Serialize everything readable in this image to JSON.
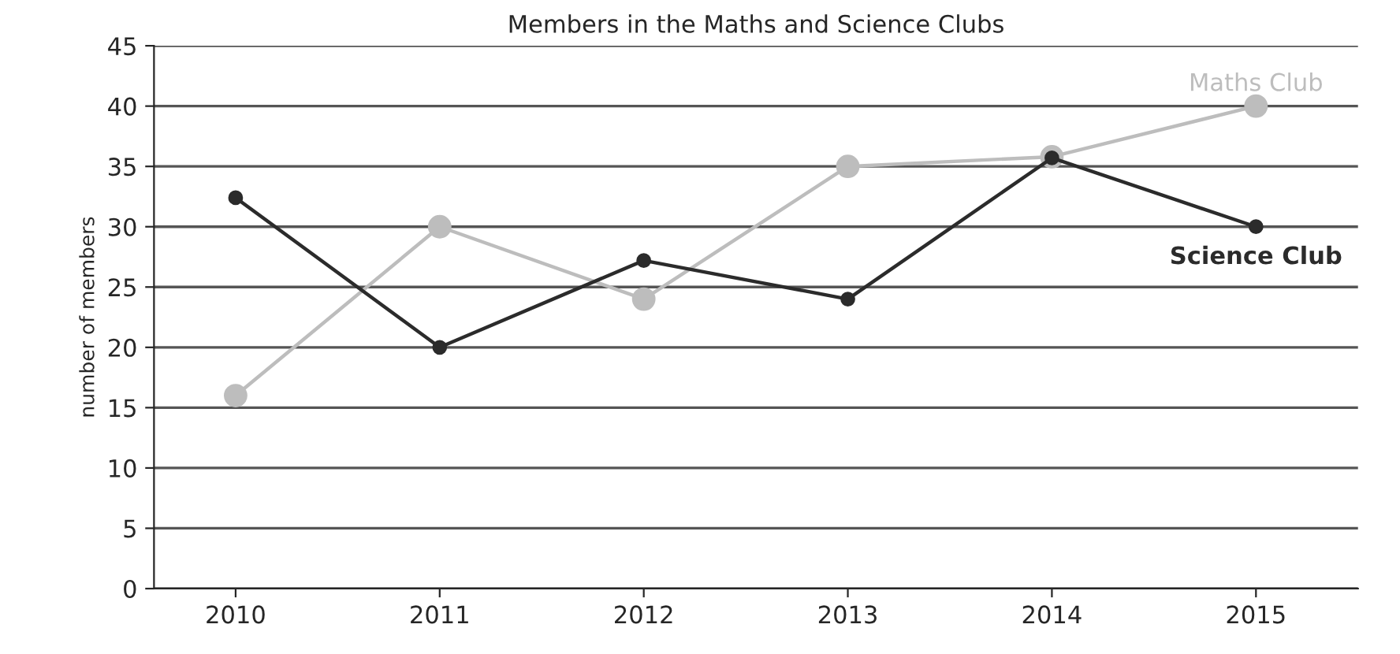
{
  "chart_data": {
    "type": "line",
    "title": "Members in the Maths and Science Clubs",
    "ylabel": "number of members",
    "categories": [
      "2010",
      "2011",
      "2012",
      "2013",
      "2014",
      "2015"
    ],
    "series": [
      {
        "name": "Maths Club",
        "color": "#bdbdbd",
        "values": [
          16,
          30,
          24,
          35,
          35.8,
          40
        ]
      },
      {
        "name": "Science Club",
        "color": "#2b2b2b",
        "values": [
          32.4,
          20,
          27.2,
          24,
          35.7,
          30
        ]
      }
    ],
    "ylim": [
      0,
      45
    ],
    "yticks": [
      0,
      5,
      10,
      15,
      20,
      25,
      30,
      35,
      40,
      45
    ],
    "grid": "y",
    "legend": false,
    "marker": "circle",
    "line_style": "solid"
  }
}
